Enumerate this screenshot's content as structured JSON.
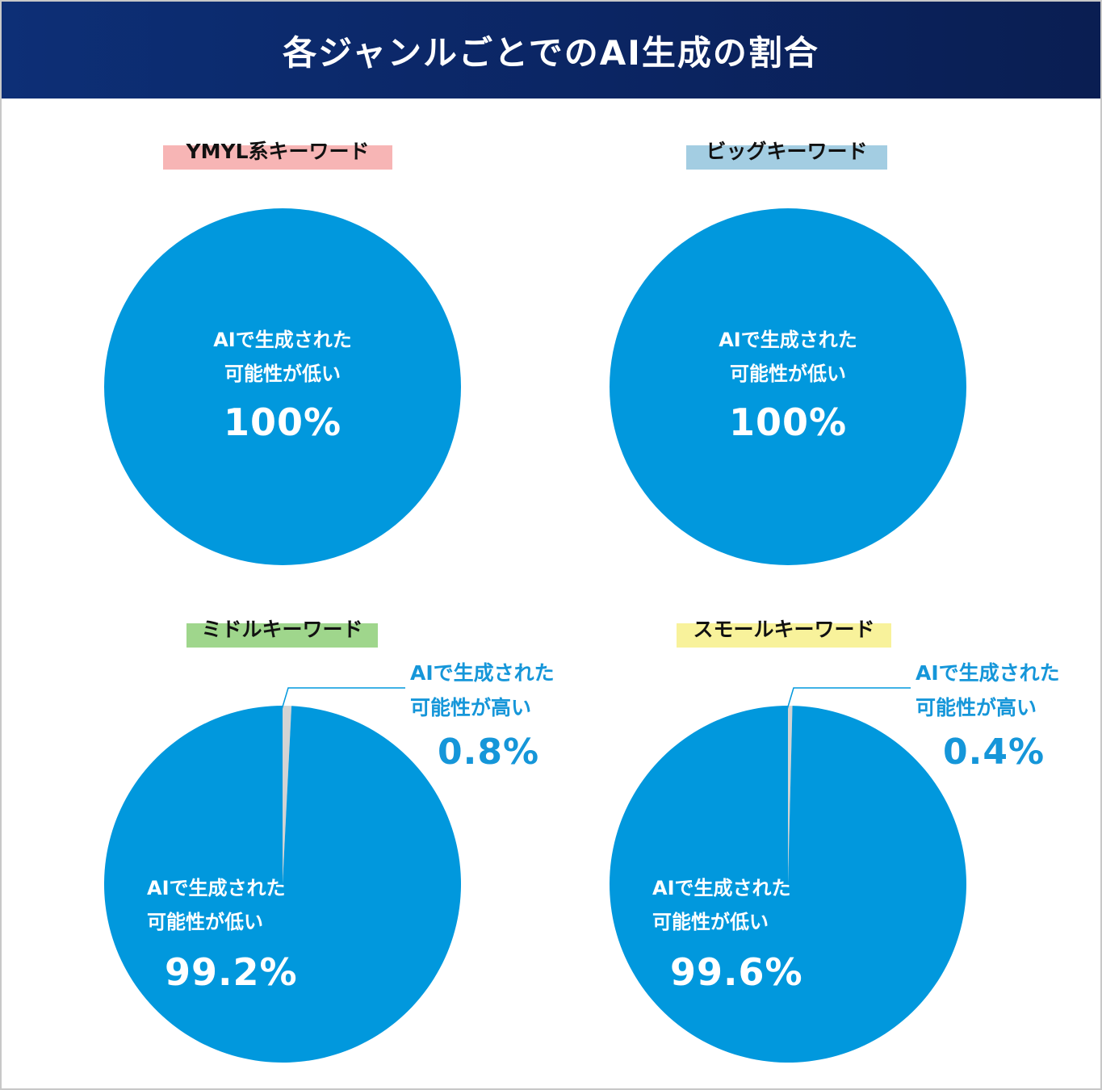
{
  "header": {
    "title": "各ジャンルごとでのAI生成の割合"
  },
  "colors": {
    "low": "#0198dd",
    "high": "#d3d3d3",
    "leader": "#0198dd",
    "label_bg": [
      "#f7b5b5",
      "#a3cde2",
      "#9fd68c",
      "#f8f29b"
    ]
  },
  "chart_data": [
    {
      "type": "pie",
      "title": "YMYL系キーワード",
      "slices": [
        {
          "label": [
            "AIで生成された",
            "可能性が低い"
          ],
          "value": 100,
          "value_label": "100%"
        }
      ]
    },
    {
      "type": "pie",
      "title": "ビッグキーワード",
      "slices": [
        {
          "label": [
            "AIで生成された",
            "可能性が低い"
          ],
          "value": 100,
          "value_label": "100%"
        }
      ]
    },
    {
      "type": "pie",
      "title": "ミドルキーワード",
      "slices": [
        {
          "label": [
            "AIで生成された",
            "可能性が高い"
          ],
          "value": 0.8,
          "value_label": "0.8%"
        },
        {
          "label": [
            "AIで生成された",
            "可能性が低い"
          ],
          "value": 99.2,
          "value_label": "99.2%"
        }
      ]
    },
    {
      "type": "pie",
      "title": "スモールキーワード",
      "slices": [
        {
          "label": [
            "AIで生成された",
            "可能性が高い"
          ],
          "value": 0.4,
          "value_label": "0.4%"
        },
        {
          "label": [
            "AIで生成された",
            "可能性が低い"
          ],
          "value": 99.6,
          "value_label": "99.6%"
        }
      ]
    }
  ]
}
